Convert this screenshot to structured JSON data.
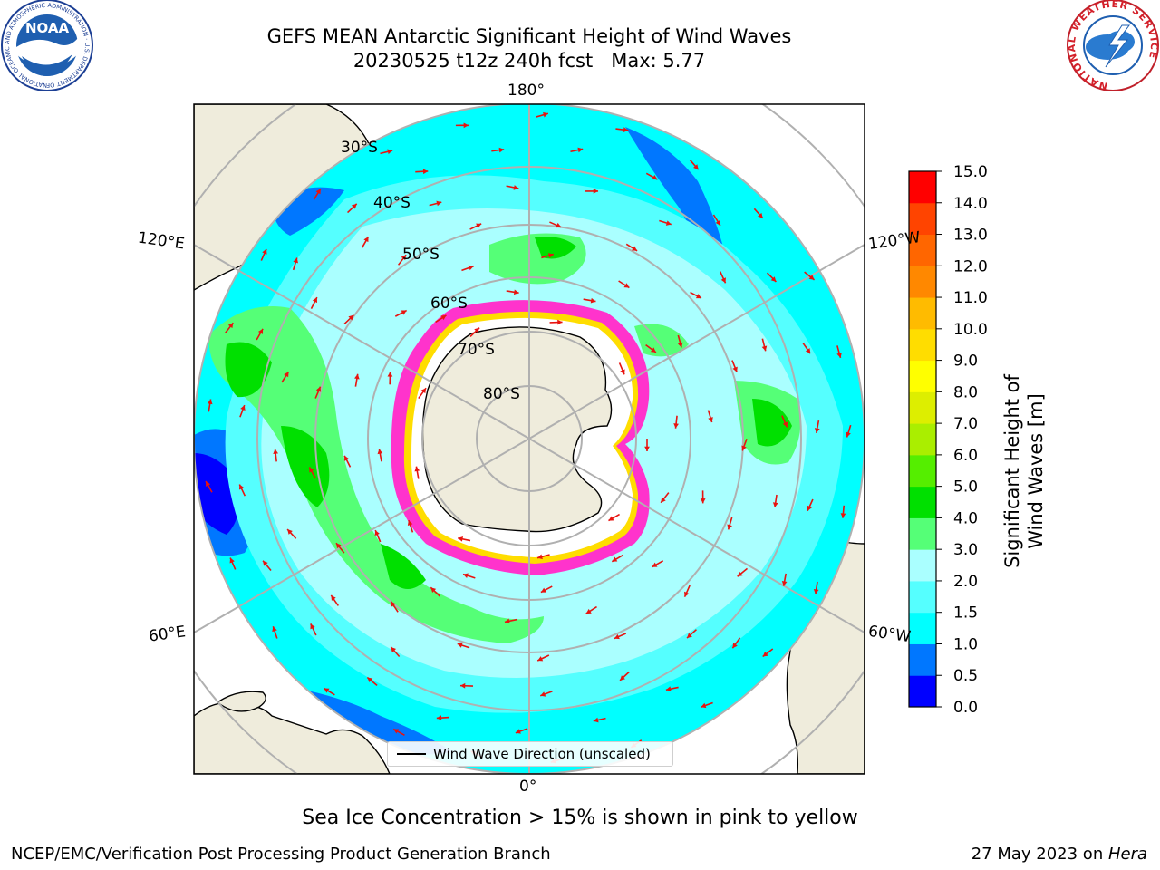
{
  "header": {
    "title_line1": "GEFS MEAN Antarctic Significant Height of Wind Waves",
    "title_line2": "20230525 t12z 240h fcst   Max: 5.77"
  },
  "logos": {
    "noaa_text": "NOAA",
    "noaa_ring_text": "NATIONAL OCEANIC AND ATMOSPHERIC ADMINISTRATION · U.S. DEPARTMENT OF COMMERCE",
    "nws_ring_text": "NATIONAL WEATHER SERVICE"
  },
  "map": {
    "projection": "south-polar-stereographic",
    "longitude_labels": [
      "180°",
      "120°E",
      "120°W",
      "60°E",
      "60°W",
      "0°"
    ],
    "latitude_labels": [
      "30°S",
      "40°S",
      "50°S",
      "60°S",
      "70°S",
      "80°S"
    ],
    "legend_label": "Wind Wave Direction (unscaled)",
    "colors": {
      "land": "#efecdc",
      "coast": "#000000",
      "grid": "#b0b0b0",
      "arrow": "#e8130f",
      "ice_edge": "#ff33cc",
      "ice_inner": "#ffffff"
    }
  },
  "colorbar": {
    "label": "Significant Height of Wind Waves [m]",
    "ticks": [
      "0.0",
      "0.5",
      "1.0",
      "1.5",
      "2.0",
      "3.0",
      "4.0",
      "5.0",
      "6.0",
      "7.0",
      "8.0",
      "9.0",
      "10.0",
      "11.0",
      "12.0",
      "13.0",
      "14.0",
      "15.0"
    ],
    "colors": [
      "#0000ff",
      "#0077ff",
      "#00ffff",
      "#55ffff",
      "#aaffff",
      "#55ff77",
      "#00e000",
      "#55ee00",
      "#aaee00",
      "#ddee00",
      "#ffff00",
      "#ffdd00",
      "#ffbb00",
      "#ff8800",
      "#ff6600",
      "#ff4400",
      "#ff0000"
    ]
  },
  "footer": {
    "ice_note": "Sea Ice Concentration > 15% is shown in pink to yellow",
    "branch": "NCEP/EMC/Verification Post Processing Product Generation Branch",
    "date_prefix": "27 May 2023 on ",
    "machine": "Hera"
  }
}
